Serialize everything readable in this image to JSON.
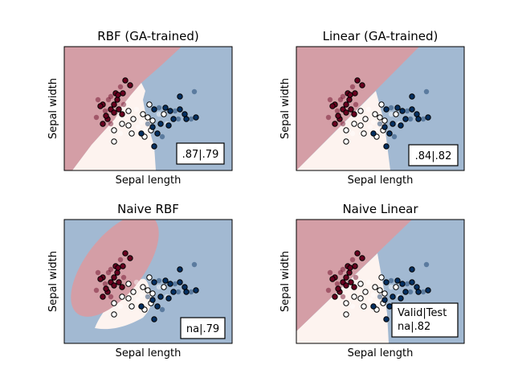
{
  "colors": {
    "red_region": "#d49ea6",
    "white_region": "#fdf3ef",
    "blue_region": "#a2b9d2",
    "red_point": "#67001f",
    "white_point": "#ffffff",
    "blue_point": "#053061"
  },
  "chart_data": [
    {
      "type": "scatter",
      "title": "RBF (GA-trained)",
      "xlabel": "Sepal length",
      "ylabel": "Sepal width",
      "ticks": "none",
      "score_box": ".87|.79",
      "regions": [
        "red (top-left)",
        "white (bottom-left wedge)",
        "blue (right)"
      ]
    },
    {
      "type": "scatter",
      "title": "Linear (GA-trained)",
      "xlabel": "Sepal length",
      "ylabel": "Sepal width",
      "ticks": "none",
      "score_box": ".84|.82",
      "regions": [
        "red (top-left)",
        "white (bottom-left)",
        "blue (right)"
      ]
    },
    {
      "type": "scatter",
      "title": "Naive RBF",
      "xlabel": "Sepal length",
      "ylabel": "Sepal width",
      "ticks": "none",
      "score_box": "na|.79",
      "regions": [
        "red (elliptical blob)",
        "white (lower wedge)",
        "blue (surrounding)"
      ]
    },
    {
      "type": "scatter",
      "title": "Naive Linear",
      "xlabel": "Sepal length",
      "ylabel": "Sepal width",
      "ticks": "none",
      "score_box": "Valid|Test\nna|.82",
      "score_box_lines": [
        "Valid|Test",
        "na|.82"
      ],
      "regions": [
        "red (top-left)",
        "white (bottom-left)",
        "blue (right)"
      ]
    }
  ]
}
